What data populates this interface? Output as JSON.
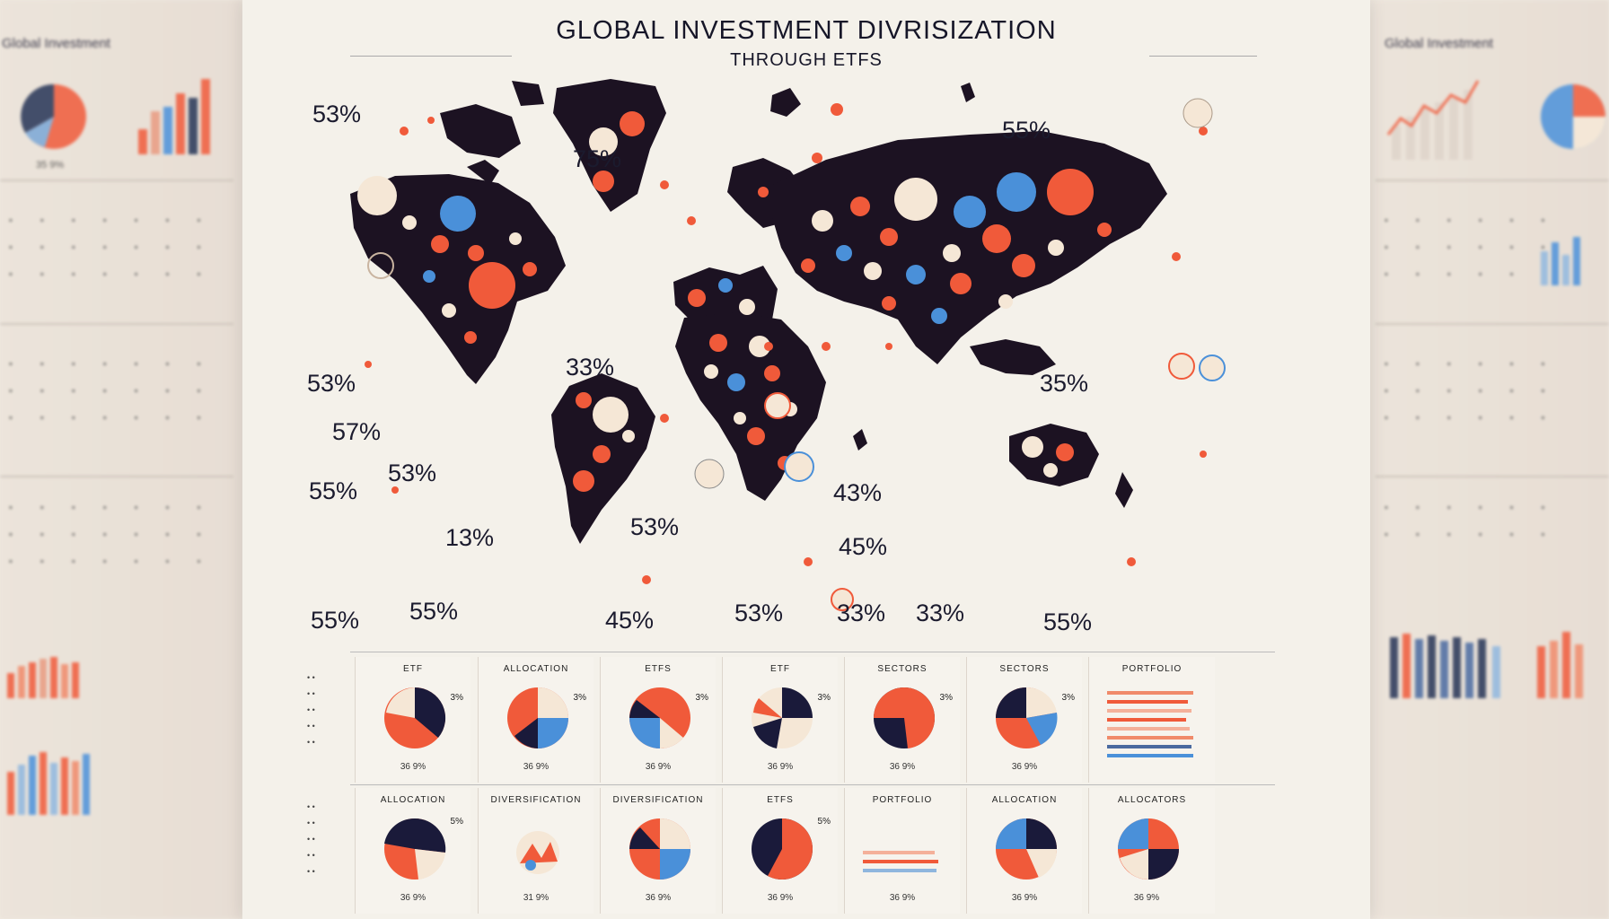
{
  "title": "GLOBAL INVESTMENT DIVRISIZATION",
  "subtitle": "THROUGH ETFS",
  "side_left": {
    "title": "Global Investment",
    "pie_caption": "35 9%"
  },
  "side_right": {
    "title": "Global Investment"
  },
  "map_percentages": [
    "53%",
    "75%",
    "55%",
    "53%",
    "33%",
    "35%",
    "57%",
    "53%",
    "55%",
    "43%",
    "13%",
    "53%",
    "45%",
    "55%",
    "55%",
    "45%",
    "53%",
    "33%",
    "33%",
    "55%"
  ],
  "top_panels": [
    {
      "label": "ETF",
      "pct": "3%",
      "foot": "36 9%"
    },
    {
      "label": "ALLOCATION",
      "pct": "3%",
      "foot": "36 9%"
    },
    {
      "label": "ETFS",
      "pct": "3%",
      "foot": "36 9%"
    },
    {
      "label": "ETF",
      "pct": "3%",
      "foot": "36 9%"
    },
    {
      "label": "SECTORS",
      "pct": "3%",
      "foot": "36 9%"
    },
    {
      "label": "SECTORS",
      "pct": "3%",
      "foot": "36 9%"
    },
    {
      "label": "PORTFOLIO",
      "pct": "",
      "foot": ""
    }
  ],
  "bottom_panels": [
    {
      "label": "ALLOCATION",
      "pct": "5%",
      "foot": "36 9%"
    },
    {
      "label": "DIVERSIFICATION",
      "pct": "",
      "foot": "31 9%"
    },
    {
      "label": "DIVERSIFICATION",
      "pct": "",
      "foot": "36 9%"
    },
    {
      "label": "ETFS",
      "pct": "5%",
      "foot": "36 9%"
    },
    {
      "label": "PORTFOLIO",
      "pct": "",
      "foot": "36 9%"
    },
    {
      "label": "ALLOCATION",
      "pct": "",
      "foot": "36 9%"
    },
    {
      "label": "ALLOCATORS",
      "pct": "",
      "foot": "36 9%"
    }
  ],
  "colors": {
    "navy": "#1a1a3a",
    "red": "#f04e30",
    "blue": "#4a90d9",
    "cream": "#f5e7d6",
    "ink": "#161628"
  }
}
